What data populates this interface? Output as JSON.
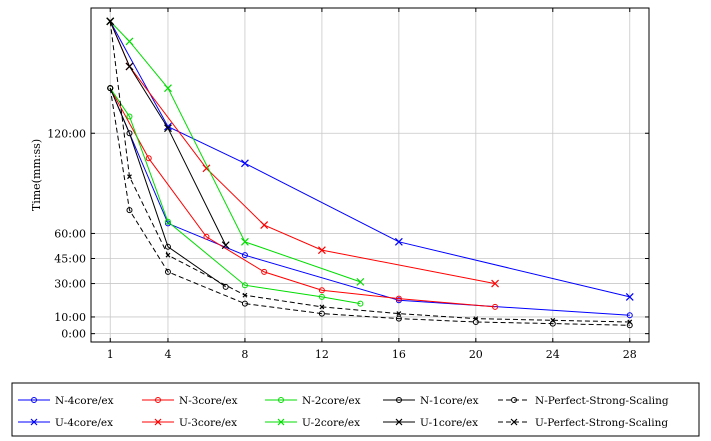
{
  "chart_data": {
    "type": "line",
    "ylabel": "Time(mm:ss)",
    "xlim": [
      0,
      29
    ],
    "ylim": [
      -5,
      195
    ],
    "grid": true,
    "x_ticks": [
      1,
      4,
      8,
      12,
      16,
      20,
      24,
      28
    ],
    "y_ticks": [
      {
        "value": 0,
        "label": "0:00"
      },
      {
        "value": 10,
        "label": "10:00"
      },
      {
        "value": 30,
        "label": "30:00"
      },
      {
        "value": 45,
        "label": "45:00"
      },
      {
        "value": 60,
        "label": "60:00"
      },
      {
        "value": 120,
        "label": "120:00"
      }
    ],
    "legend_position": "bottom",
    "series": [
      {
        "name": "N-4core/ex",
        "color": "#0000ff",
        "marker": "circle",
        "dash": false,
        "x": [
          1,
          4,
          8,
          16,
          28
        ],
        "y": [
          147,
          66,
          47,
          20,
          11
        ]
      },
      {
        "name": "N-3core/ex",
        "color": "#ff0000",
        "marker": "circle",
        "dash": false,
        "x": [
          1,
          3,
          6,
          9,
          12,
          16,
          21
        ],
        "y": [
          147,
          105,
          58,
          37,
          26,
          21,
          16
        ]
      },
      {
        "name": "N-2core/ex",
        "color": "#00dd00",
        "marker": "circle",
        "dash": false,
        "x": [
          1,
          2,
          4,
          8,
          12,
          14
        ],
        "y": [
          147,
          130,
          67,
          29,
          22,
          18
        ]
      },
      {
        "name": "N-1core/ex",
        "color": "#000000",
        "marker": "circle",
        "dash": false,
        "x": [
          1,
          2,
          4,
          7
        ],
        "y": [
          147,
          120,
          52,
          28
        ]
      },
      {
        "name": "N-Perfect-Strong-Scaling",
        "color": "#000000",
        "marker": "circle",
        "dash": true,
        "x": [
          1,
          2,
          4,
          8,
          12,
          16,
          20,
          24,
          28
        ],
        "y": [
          147,
          74,
          37,
          18,
          12,
          9,
          7,
          6,
          5
        ]
      },
      {
        "name": "U-4core/ex",
        "color": "#0000ff",
        "marker": "x",
        "dash": false,
        "x": [
          1,
          4,
          8,
          16,
          28
        ],
        "y": [
          187,
          124,
          102,
          55,
          22
        ]
      },
      {
        "name": "U-3core/ex",
        "color": "#ff0000",
        "marker": "x",
        "dash": false,
        "x": [
          1,
          2,
          6,
          9,
          12,
          21
        ],
        "y": [
          187,
          160,
          99,
          65,
          50,
          30
        ]
      },
      {
        "name": "U-2core/ex",
        "color": "#00dd00",
        "marker": "x",
        "dash": false,
        "x": [
          1,
          2,
          4,
          8,
          14
        ],
        "y": [
          187,
          175,
          147,
          55,
          31
        ]
      },
      {
        "name": "U-1core/ex",
        "color": "#000000",
        "marker": "x",
        "dash": false,
        "x": [
          1,
          2,
          4,
          7
        ],
        "y": [
          187,
          160,
          123,
          53
        ]
      },
      {
        "name": "U-Perfect-Strong-Scaling",
        "color": "#000000",
        "marker": "x",
        "dash": true,
        "x": [
          1,
          2,
          4,
          8,
          12,
          16,
          20,
          24,
          28
        ],
        "y": [
          187,
          94,
          47,
          23,
          16,
          12,
          9,
          8,
          7
        ]
      }
    ]
  }
}
